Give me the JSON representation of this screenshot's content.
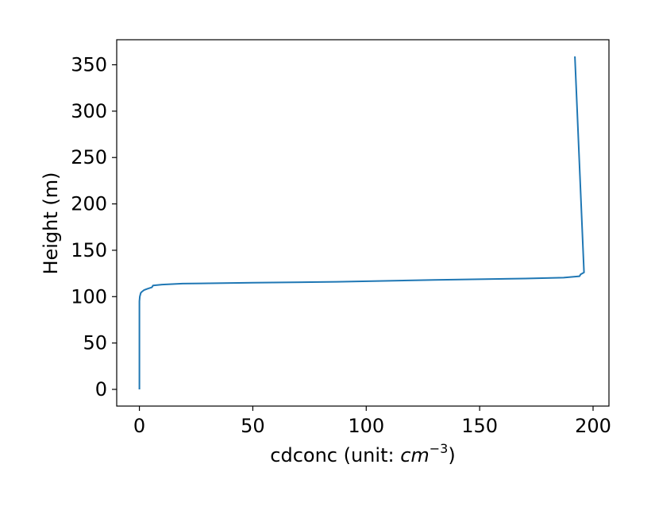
{
  "chart_data": {
    "type": "line",
    "xlabel": "cdconc (unit: ",
    "xlabel_math": "cm",
    "xlabel_exp": "−3",
    "xlabel_close": ")",
    "ylabel": "Height (m)",
    "xlim": [
      -10,
      207
    ],
    "ylim": [
      -18,
      377
    ],
    "xticks": [
      0,
      50,
      100,
      150,
      200
    ],
    "yticks": [
      0,
      50,
      100,
      150,
      200,
      250,
      300,
      350
    ],
    "grid": false,
    "series": [
      {
        "color": "#1f77b4",
        "x": [
          0,
          0,
          0.2,
          0.6,
          1,
          2,
          3.5,
          5.5,
          6,
          10,
          19,
          50,
          87,
          130,
          170,
          187,
          194,
          194.5,
          196,
          192
        ],
        "y": [
          0,
          95,
          100,
          104,
          105,
          107,
          108.5,
          110,
          112,
          113,
          114,
          115,
          116,
          118,
          119.5,
          120.5,
          122,
          124,
          126,
          359
        ]
      }
    ]
  }
}
